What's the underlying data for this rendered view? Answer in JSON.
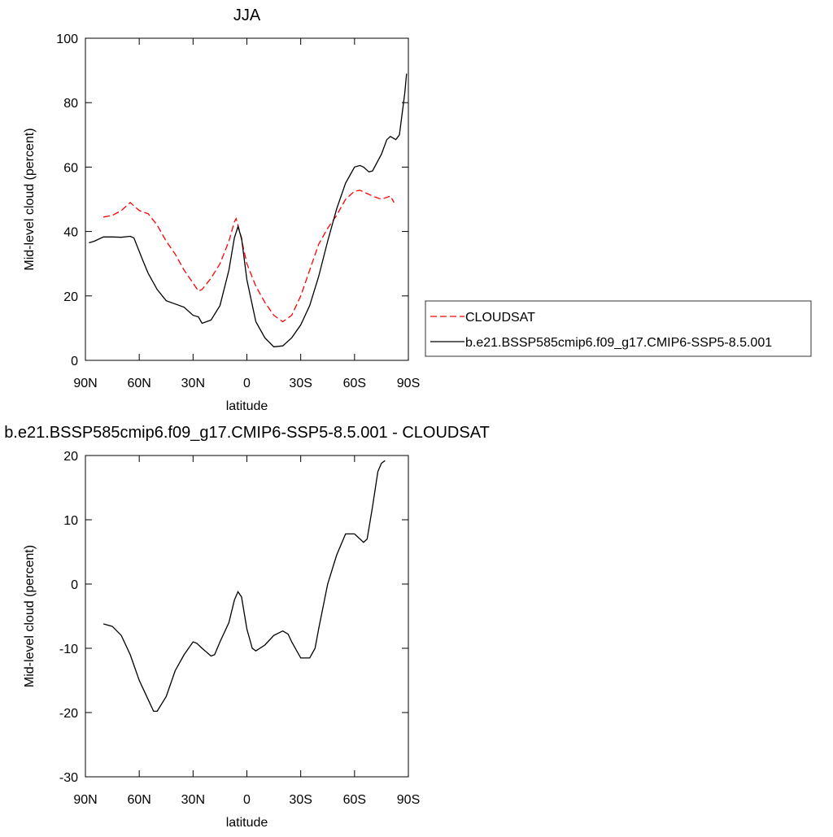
{
  "chart_data": [
    {
      "type": "line",
      "title": "JJA",
      "xlabel": "latitude",
      "ylabel": "Mid-level cloud (percent)",
      "xlim": [
        90,
        -90
      ],
      "ylim": [
        0,
        100
      ],
      "xticks": [
        {
          "value": 90,
          "label": "90N"
        },
        {
          "value": 60,
          "label": "60N"
        },
        {
          "value": 30,
          "label": "30N"
        },
        0,
        {
          "value": -30,
          "label": "30S"
        },
        {
          "value": -60,
          "label": "60S"
        },
        {
          "value": -90,
          "label": "90S"
        }
      ],
      "yticks": [
        0,
        20,
        40,
        60,
        80,
        100
      ],
      "legend": "right",
      "series": [
        {
          "name": "CLOUDSAT",
          "color": "#ff0000",
          "dashed": true,
          "x": [
            80,
            75,
            70,
            65,
            60,
            55,
            50,
            45,
            40,
            35,
            30,
            27,
            25,
            20,
            15,
            10,
            7,
            6,
            4,
            0,
            -5,
            -10,
            -15,
            -20,
            -25,
            -30,
            -35,
            -40,
            -45,
            -50,
            -55,
            -60,
            -63,
            -65,
            -70,
            -75,
            -80,
            -82
          ],
          "values": [
            44.5,
            45,
            46.5,
            49,
            46.5,
            45.5,
            42,
            37,
            33,
            28,
            24,
            21.5,
            22,
            25.5,
            30,
            37,
            43,
            44,
            40,
            30,
            23,
            18,
            14,
            12,
            14,
            20,
            28,
            36,
            41,
            45,
            50,
            52.5,
            52.8,
            52.3,
            51,
            50,
            51,
            49
          ]
        },
        {
          "name": "b.e21.BSSP585cmip6.f09_g17.CMIP6-SSP5-8.5.001",
          "color": "#000000",
          "dashed": false,
          "x": [
            88,
            85,
            80,
            75,
            70,
            65,
            63,
            58,
            55,
            50,
            45,
            40,
            35,
            30,
            27,
            25,
            20,
            15,
            10,
            7,
            5,
            3,
            0,
            -5,
            -10,
            -15,
            -20,
            -25,
            -30,
            -35,
            -40,
            -45,
            -50,
            -55,
            -60,
            -63,
            -65,
            -68,
            -70,
            -75,
            -78,
            -80,
            -83,
            -85,
            -88,
            -89
          ],
          "values": [
            36.5,
            37,
            38.3,
            38.3,
            38.2,
            38.5,
            38,
            31,
            27,
            22,
            18.5,
            17.5,
            16.5,
            14,
            13.5,
            11.5,
            12.5,
            17,
            28,
            38,
            41.5,
            38,
            25,
            12,
            7,
            4.2,
            4.5,
            7,
            11,
            17,
            26,
            37,
            47,
            55,
            60,
            60.5,
            60,
            58.5,
            58.8,
            64,
            68.5,
            69.5,
            68.5,
            70,
            83,
            89
          ]
        }
      ]
    },
    {
      "type": "line",
      "title": "b.e21.BSSP585cmip6.f09_g17.CMIP6-SSP5-8.5.001 - CLOUDSAT",
      "xlabel": "latitude",
      "ylabel": "Mid-level cloud (percent)",
      "xlim": [
        90,
        -90
      ],
      "ylim": [
        -30,
        20
      ],
      "xticks": [
        {
          "value": 90,
          "label": "90N"
        },
        {
          "value": 60,
          "label": "60N"
        },
        {
          "value": 30,
          "label": "30N"
        },
        0,
        {
          "value": -30,
          "label": "30S"
        },
        {
          "value": -60,
          "label": "60S"
        },
        {
          "value": -90,
          "label": "90S"
        }
      ],
      "yticks": [
        -30,
        -20,
        -10,
        0,
        10,
        20
      ],
      "series": [
        {
          "color": "#000000",
          "dashed": false,
          "x": [
            80,
            75,
            70,
            65,
            60,
            55,
            52,
            50,
            45,
            40,
            35,
            30,
            28,
            25,
            20,
            18,
            15,
            10,
            7,
            5,
            3,
            0,
            -3,
            -5,
            -10,
            -15,
            -20,
            -23,
            -25,
            -30,
            -35,
            -38,
            -40,
            -45,
            -50,
            -55,
            -60,
            -65,
            -67,
            -70,
            -73,
            -75,
            -77
          ],
          "values": [
            -6.2,
            -6.6,
            -8,
            -11,
            -15,
            -18,
            -19.8,
            -19.8,
            -17.5,
            -13.5,
            -11,
            -9,
            -9.2,
            -10,
            -11.2,
            -11,
            -9,
            -6,
            -2.5,
            -1.2,
            -2,
            -7,
            -10,
            -10.4,
            -9.5,
            -8,
            -7.3,
            -7.8,
            -9,
            -11.5,
            -11.5,
            -10,
            -7,
            0,
            4.5,
            7.8,
            7.8,
            6.5,
            7,
            12,
            17.5,
            18.8,
            19.2
          ]
        }
      ]
    }
  ]
}
